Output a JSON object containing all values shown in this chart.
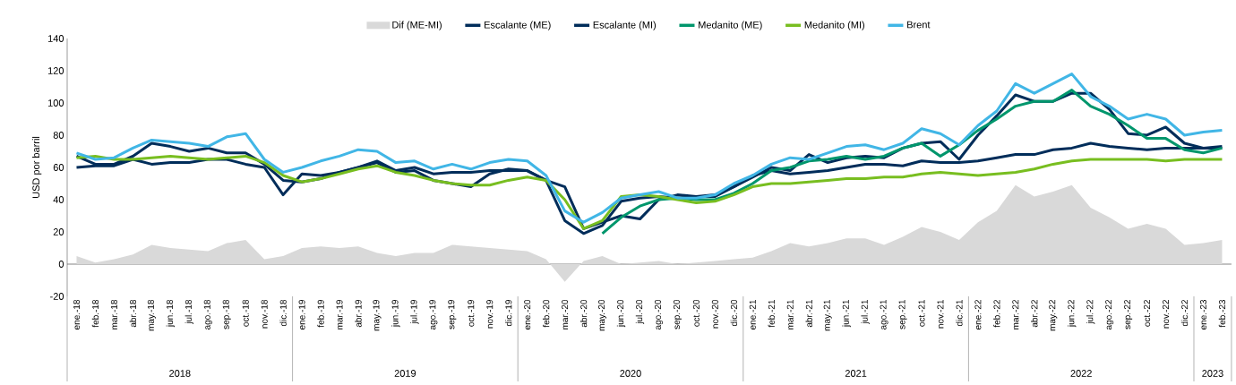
{
  "chart_data": {
    "type": "line",
    "ylabel": "USD por barril",
    "categories": [
      "ene.-18",
      "feb.-18",
      "mar.-18",
      "abr.-18",
      "may.-18",
      "jun.-18",
      "jul.-18",
      "ago.-18",
      "sep.-18",
      "oct.-18",
      "nov.-18",
      "dic.-18",
      "ene.-19",
      "feb.-19",
      "mar.-19",
      "abr.-19",
      "may.-19",
      "jun.-19",
      "jul.-19",
      "ago.-19",
      "sep.-19",
      "oct.-19",
      "nov.-19",
      "dic.-19",
      "ene.-20",
      "feb.-20",
      "mar.-20",
      "abr.-20",
      "may.-20",
      "jun.-20",
      "jul.-20",
      "ago.-20",
      "sep.-20",
      "oct.-20",
      "nov.-20",
      "dic.-20",
      "ene.-21",
      "feb.-21",
      "mar.-21",
      "abr.-21",
      "may.-21",
      "jun.-21",
      "jul.-21",
      "ago.-21",
      "sep.-21",
      "oct.-21",
      "nov.-21",
      "dic.-21",
      "ene.-22",
      "feb.-22",
      "mar.-22",
      "abr.-22",
      "may.-22",
      "jun.-22",
      "jul.-22",
      "ago.-22",
      "sep.-22",
      "oct.-22",
      "nov.-22",
      "dic.-22",
      "ene.-23",
      "feb.-23"
    ],
    "series": [
      {
        "name": "Dif (ME-MI)",
        "type": "area",
        "color": "#d9d9d9",
        "values": [
          5,
          1,
          3,
          6,
          12,
          10,
          9,
          8,
          13,
          15,
          3,
          5,
          10,
          11,
          10,
          11,
          7,
          5,
          7,
          7,
          12,
          11,
          10,
          9,
          8,
          3,
          -11,
          2,
          5,
          0,
          1,
          2,
          0,
          1,
          2,
          3,
          4,
          8,
          13,
          11,
          13,
          16,
          16,
          12,
          17,
          23,
          20,
          15,
          26,
          33,
          49,
          42,
          45,
          49,
          35,
          29,
          22,
          25,
          22,
          12,
          13,
          15
        ]
      },
      {
        "name": "Escalante (ME)",
        "color": "#002d5a",
        "values": [
          67,
          62,
          62,
          67,
          75,
          73,
          70,
          72,
          69,
          69,
          62,
          52,
          51,
          53,
          57,
          60,
          63,
          57,
          58,
          52,
          50,
          48,
          56,
          59,
          58,
          52,
          27,
          19,
          24,
          39,
          41,
          42,
          41,
          42,
          42,
          48,
          54,
          60,
          58,
          68,
          63,
          66,
          67,
          66,
          72,
          75,
          76,
          65,
          80,
          92,
          105,
          101,
          101,
          106,
          106,
          96,
          81,
          80,
          85,
          75,
          72,
          72
        ]
      },
      {
        "name": "Escalante (MI)",
        "color": "#002d5a",
        "values": [
          60,
          61,
          61,
          65,
          62,
          63,
          63,
          65,
          65,
          62,
          60,
          43,
          56,
          55,
          57,
          60,
          64,
          58,
          60,
          56,
          57,
          57,
          58,
          58,
          58,
          52,
          48,
          22,
          26,
          30,
          28,
          40,
          43,
          42,
          43,
          48,
          55,
          58,
          56,
          57,
          58,
          60,
          62,
          62,
          61,
          64,
          63,
          63,
          64,
          66,
          68,
          68,
          71,
          72,
          75,
          73,
          72,
          71,
          72,
          72,
          72,
          73
        ]
      },
      {
        "name": "Medanito (ME)",
        "color": "#00966c",
        "values": [
          null,
          null,
          null,
          null,
          null,
          null,
          null,
          null,
          null,
          null,
          null,
          null,
          null,
          null,
          null,
          null,
          null,
          null,
          null,
          null,
          null,
          null,
          null,
          null,
          null,
          null,
          null,
          null,
          19,
          29,
          36,
          40,
          41,
          40,
          40,
          44,
          50,
          58,
          60,
          64,
          65,
          67,
          65,
          67,
          72,
          75,
          67,
          74,
          83,
          90,
          98,
          101,
          101,
          108,
          98,
          93,
          86,
          78,
          78,
          71,
          69,
          72
        ]
      },
      {
        "name": "Medanito (MI)",
        "color": "#78be20",
        "values": [
          66,
          67,
          65,
          65,
          66,
          67,
          66,
          65,
          66,
          67,
          63,
          55,
          51,
          53,
          56,
          59,
          61,
          57,
          55,
          52,
          50,
          49,
          49,
          52,
          54,
          52,
          40,
          22,
          27,
          42,
          43,
          42,
          40,
          38,
          39,
          43,
          48,
          50,
          50,
          51,
          52,
          53,
          53,
          54,
          54,
          56,
          57,
          56,
          55,
          56,
          57,
          59,
          62,
          64,
          65,
          65,
          65,
          65,
          64,
          65,
          65,
          65
        ]
      },
      {
        "name": "Brent",
        "color": "#41b6e6",
        "values": [
          69,
          65,
          66,
          72,
          77,
          76,
          75,
          73,
          79,
          81,
          65,
          57,
          60,
          64,
          67,
          71,
          70,
          63,
          64,
          59,
          62,
          59,
          63,
          65,
          64,
          55,
          33,
          26,
          32,
          41,
          43,
          45,
          41,
          41,
          43,
          50,
          55,
          62,
          66,
          65,
          69,
          73,
          74,
          71,
          75,
          84,
          81,
          74,
          86,
          95,
          112,
          106,
          112,
          118,
          104,
          98,
          90,
          93,
          90,
          80,
          82,
          83
        ]
      }
    ],
    "ylim": [
      -20,
      140
    ],
    "yticks": [
      -20,
      0,
      20,
      40,
      60,
      80,
      100,
      120,
      140
    ],
    "legend": "top",
    "annotations": [
      "2018",
      "2019",
      "2020",
      "2021",
      "2022",
      "2023"
    ]
  }
}
